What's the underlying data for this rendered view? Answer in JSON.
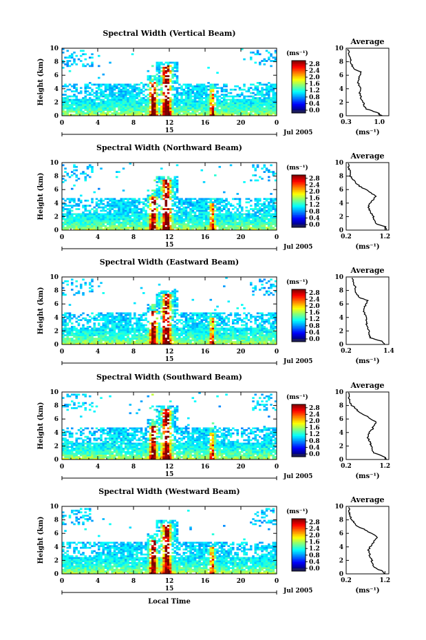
{
  "figure": {
    "x_axis_label": "Local Time",
    "date_label": "Jul 2005",
    "colorbar_unit": "(ms⁻¹)",
    "average_title": "Average",
    "average_unit": "(ms⁻¹)"
  },
  "chart_data": [
    {
      "type": "heatmap",
      "title": "Spectral Width (Vertical Beam)",
      "xlabel": "",
      "ylabel": "Height (km)",
      "x_ticks": [
        "0",
        "4",
        "8",
        "12",
        "16",
        "20",
        "0"
      ],
      "x_day_label": "15",
      "y_ticks": [
        "0",
        "2",
        "4",
        "6",
        "8",
        "10"
      ],
      "xlim": [
        0,
        24
      ],
      "ylim": [
        0,
        10
      ],
      "colorbar_ticks": [
        "0.0",
        "0.4",
        "0.8",
        "1.2",
        "1.6",
        "2.0",
        "2.4",
        "2.8"
      ],
      "colorbar_range": [
        0,
        3.0
      ],
      "average_profile": {
        "x_ticks": [
          "0.3",
          "1.0"
        ],
        "xlim": [
          0.3,
          1.2
        ],
        "ylim": [
          0,
          10
        ],
        "height_km": [
          0,
          0.5,
          1,
          1.5,
          2,
          2.5,
          3,
          3.5,
          4,
          4.5,
          5,
          5.5,
          6,
          6.5,
          7,
          7.5,
          8,
          8.5,
          9,
          9.5
        ],
        "width_ms": [
          1.05,
          0.95,
          0.72,
          0.68,
          0.66,
          0.62,
          0.6,
          0.58,
          0.6,
          0.57,
          0.55,
          0.56,
          0.6,
          0.62,
          0.45,
          0.42,
          0.38,
          0.4,
          0.36,
          0.35
        ]
      }
    },
    {
      "type": "heatmap",
      "title": "Spectral Width (Northward Beam)",
      "xlabel": "",
      "ylabel": "Height (km)",
      "x_ticks": [
        "0",
        "4",
        "8",
        "12",
        "16",
        "20",
        "0"
      ],
      "x_day_label": "15",
      "y_ticks": [
        "0",
        "2",
        "4",
        "6",
        "8",
        "10"
      ],
      "xlim": [
        0,
        24
      ],
      "ylim": [
        0,
        10
      ],
      "colorbar_ticks": [
        "0.0",
        "0.4",
        "0.8",
        "1.2",
        "1.6",
        "2.0",
        "2.4",
        "2.8"
      ],
      "colorbar_range": [
        0,
        3.0
      ],
      "average_profile": {
        "x_ticks": [
          "0.2",
          "1.2"
        ],
        "xlim": [
          0.2,
          1.3
        ],
        "ylim": [
          0,
          10
        ],
        "height_km": [
          0,
          0.5,
          1,
          1.5,
          2,
          2.5,
          3,
          3.5,
          4,
          4.5,
          5,
          5.5,
          6,
          6.5,
          7,
          7.5,
          8,
          8.5,
          9,
          9.5
        ],
        "width_ms": [
          1.25,
          1.2,
          0.95,
          0.92,
          0.9,
          0.85,
          0.8,
          0.78,
          0.82,
          0.9,
          0.95,
          0.85,
          0.7,
          0.55,
          0.45,
          0.38,
          0.3,
          0.32,
          0.28,
          0.26
        ]
      }
    },
    {
      "type": "heatmap",
      "title": "Spectral Width (Eastward Beam)",
      "xlabel": "",
      "ylabel": "Height (km)",
      "x_ticks": [
        "0",
        "4",
        "8",
        "12",
        "16",
        "20",
        "0"
      ],
      "x_day_label": "15",
      "y_ticks": [
        "0",
        "2",
        "4",
        "6",
        "8",
        "10"
      ],
      "xlim": [
        0,
        24
      ],
      "ylim": [
        0,
        10
      ],
      "colorbar_ticks": [
        "0.0",
        "0.4",
        "0.8",
        "1.2",
        "1.6",
        "2.0",
        "2.4",
        "2.8"
      ],
      "colorbar_range": [
        0,
        3.0
      ],
      "average_profile": {
        "x_ticks": [
          "0.2",
          "1.4"
        ],
        "xlim": [
          0.2,
          1.4
        ],
        "ylim": [
          0,
          10
        ],
        "height_km": [
          0,
          0.5,
          1,
          1.5,
          2,
          2.5,
          3,
          3.5,
          4,
          4.5,
          5,
          5.5,
          6,
          6.5,
          7,
          7.5,
          8,
          8.5,
          9,
          9.5
        ],
        "width_ms": [
          1.3,
          1.2,
          0.88,
          0.86,
          0.85,
          0.8,
          0.78,
          0.75,
          0.78,
          0.72,
          0.7,
          0.72,
          0.75,
          0.8,
          0.55,
          0.5,
          0.45,
          0.48,
          0.4,
          0.38
        ]
      }
    },
    {
      "type": "heatmap",
      "title": "Spectral Width (Southward Beam)",
      "xlabel": "",
      "ylabel": "Height (km)",
      "x_ticks": [
        "0",
        "4",
        "8",
        "12",
        "16",
        "20",
        "0"
      ],
      "x_day_label": "15",
      "y_ticks": [
        "0",
        "2",
        "4",
        "6",
        "8",
        "10"
      ],
      "xlim": [
        0,
        24
      ],
      "ylim": [
        0,
        10
      ],
      "colorbar_ticks": [
        "0.0",
        "0.4",
        "0.8",
        "1.2",
        "1.6",
        "2.0",
        "2.4",
        "2.8"
      ],
      "colorbar_range": [
        0,
        3.0
      ],
      "average_profile": {
        "x_ticks": [
          "0.2",
          "1.2"
        ],
        "xlim": [
          0.2,
          1.3
        ],
        "ylim": [
          0,
          10
        ],
        "height_km": [
          0,
          0.5,
          1,
          1.5,
          2,
          2.5,
          3,
          3.5,
          4,
          4.5,
          5,
          5.5,
          6,
          6.5,
          7,
          7.5,
          8,
          8.5,
          9,
          9.5
        ],
        "width_ms": [
          1.25,
          1.15,
          0.9,
          0.88,
          0.85,
          0.82,
          0.78,
          0.75,
          0.8,
          0.88,
          0.9,
          0.98,
          0.85,
          0.7,
          0.55,
          0.45,
          0.35,
          0.3,
          0.28,
          0.26
        ]
      }
    },
    {
      "type": "heatmap",
      "title": "Spectral Width (Westward Beam)",
      "xlabel": "Local Time",
      "ylabel": "Height (km)",
      "x_ticks": [
        "0",
        "4",
        "8",
        "12",
        "16",
        "20",
        "0"
      ],
      "x_day_label": "15",
      "y_ticks": [
        "0",
        "2",
        "4",
        "6",
        "8",
        "10"
      ],
      "xlim": [
        0,
        24
      ],
      "ylim": [
        0,
        10
      ],
      "colorbar_ticks": [
        "0.0",
        "0.4",
        "0.8",
        "1.2",
        "1.6",
        "2.0",
        "2.4",
        "2.8"
      ],
      "colorbar_range": [
        0,
        3.0
      ],
      "average_profile": {
        "x_ticks": [
          "0.2",
          "1.2"
        ],
        "xlim": [
          0.2,
          1.3
        ],
        "ylim": [
          0,
          10
        ],
        "height_km": [
          0,
          0.5,
          1,
          1.5,
          2,
          2.5,
          3,
          3.5,
          4,
          4.5,
          5,
          5.5,
          6,
          6.5,
          7,
          7.5,
          8,
          8.5,
          9,
          9.5
        ],
        "width_ms": [
          1.2,
          1.1,
          0.9,
          0.88,
          0.86,
          0.82,
          0.8,
          0.78,
          0.82,
          0.88,
          0.95,
          1.0,
          0.85,
          0.7,
          0.5,
          0.42,
          0.35,
          0.3,
          0.28,
          0.27
        ]
      }
    }
  ]
}
